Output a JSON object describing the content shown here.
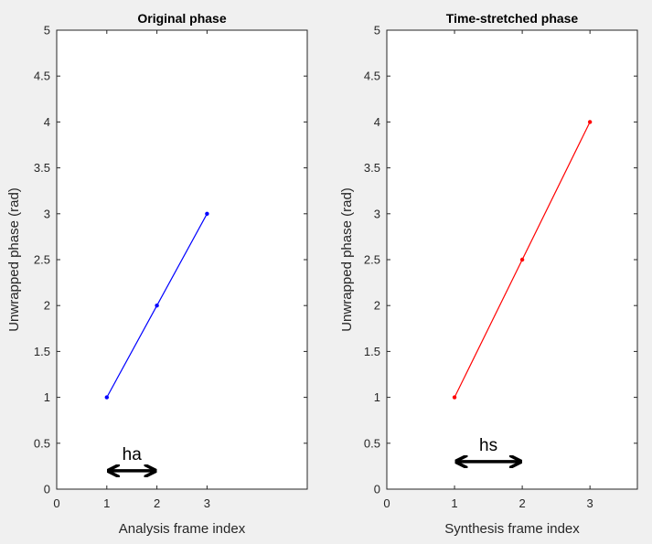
{
  "chart_data": [
    {
      "type": "line",
      "title": "Original phase",
      "xlabel": "Analysis frame index",
      "ylabel": "Unwrapped phase (rad)",
      "xlim": [
        0,
        5
      ],
      "ylim": [
        0,
        5
      ],
      "xticks": [
        "0",
        "1",
        "2",
        "3"
      ],
      "yticks": [
        "0",
        "0.5",
        "1",
        "1.5",
        "2",
        "2.5",
        "3",
        "3.5",
        "4",
        "4.5",
        "5"
      ],
      "grid": false,
      "series": [
        {
          "x": [
            1,
            2,
            3
          ],
          "y": [
            1,
            2,
            3
          ],
          "color": "#0000ff",
          "marker": "dot"
        }
      ],
      "annotations": [
        {
          "label": "ha",
          "arrow_from_x": 1,
          "arrow_to_x": 2,
          "arrow_y": 0.2,
          "double_headed": true
        }
      ]
    },
    {
      "type": "line",
      "title": "Time-stretched phase",
      "xlabel": "Synthesis frame index",
      "ylabel": "Unwrapped phase (rad)",
      "xlim": [
        0,
        3.7
      ],
      "ylim": [
        0,
        5
      ],
      "xticks": [
        "0",
        "1",
        "2",
        "3"
      ],
      "yticks": [
        "0",
        "0.5",
        "1",
        "1.5",
        "2",
        "2.5",
        "3",
        "3.5",
        "4",
        "4.5",
        "5"
      ],
      "grid": false,
      "series": [
        {
          "x": [
            1,
            2,
            3
          ],
          "y": [
            1,
            2.5,
            4
          ],
          "color": "#ff0000",
          "marker": "dot"
        }
      ],
      "annotations": [
        {
          "label": "hs",
          "arrow_from_x": 1,
          "arrow_to_x": 2,
          "arrow_y": 0.3,
          "double_headed": true
        }
      ]
    }
  ]
}
